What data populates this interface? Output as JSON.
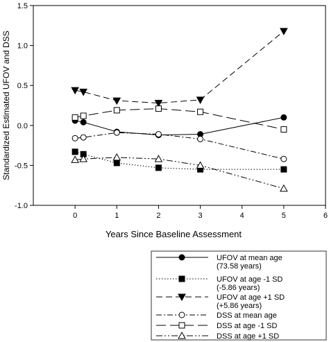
{
  "chart_data": {
    "type": "line",
    "xlabel": "Years Since Baseline Assessment",
    "ylabel": "Standardized Estimated UFOV and DSS",
    "xlim": [
      -1,
      6
    ],
    "ylim": [
      -1.0,
      1.5
    ],
    "xticks": [
      0,
      1,
      2,
      3,
      4,
      5,
      6
    ],
    "xtick_labels": [
      "0",
      "1",
      "2",
      "3",
      "4",
      "5",
      "6"
    ],
    "yticks": [
      -1.0,
      -0.5,
      0.0,
      0.5,
      1.0,
      1.5
    ],
    "ytick_labels": [
      "-1.0",
      "-0.5",
      "0.0",
      "0.5",
      "1.0",
      "1.5"
    ],
    "grid": false,
    "legend_position": "bottom-right, below plot",
    "series": [
      {
        "name": "UFOV at mean age",
        "name2": "(73.58 years)",
        "dash": "solid",
        "marker": "circle-filled",
        "x": [
          0,
          0.2,
          1,
          2,
          3,
          5
        ],
        "y": [
          0.06,
          0.04,
          -0.08,
          -0.12,
          -0.11,
          0.1
        ]
      },
      {
        "name": "UFOV at age -1 SD",
        "name2": "(-5.86 years)",
        "dash": "dotted",
        "marker": "square-filled",
        "x": [
          0,
          0.2,
          1,
          2,
          3,
          5
        ],
        "y": [
          -0.33,
          -0.36,
          -0.47,
          -0.53,
          -0.55,
          -0.55
        ]
      },
      {
        "name": "UFOV at age +1 SD",
        "name2": "(+5.86 years)",
        "dash": "dashed",
        "marker": "triangle-down-filled",
        "x": [
          0,
          0.2,
          1,
          2,
          3,
          5
        ],
        "y": [
          0.44,
          0.42,
          0.31,
          0.28,
          0.32,
          1.18
        ]
      },
      {
        "name": "DSS at mean age",
        "name2": "",
        "dash": "dashdot",
        "marker": "circle-open",
        "x": [
          0,
          0.2,
          1,
          2,
          3,
          5
        ],
        "y": [
          -0.16,
          -0.15,
          -0.09,
          -0.11,
          -0.17,
          -0.42
        ]
      },
      {
        "name": "DSS at age -1 SD",
        "name2": "",
        "dash": "longdash",
        "marker": "square-open",
        "x": [
          0,
          0.2,
          1,
          2,
          3,
          5
        ],
        "y": [
          0.1,
          0.12,
          0.19,
          0.21,
          0.17,
          -0.05
        ]
      },
      {
        "name": "DSS at age +1 SD",
        "name2": "",
        "dash": "dashdotdot",
        "marker": "triangle-up-open",
        "x": [
          0,
          0.2,
          1,
          2,
          3,
          5
        ],
        "y": [
          -0.43,
          -0.42,
          -0.4,
          -0.42,
          -0.5,
          -0.79
        ]
      }
    ]
  }
}
